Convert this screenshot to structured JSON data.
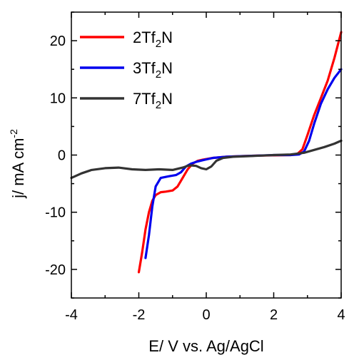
{
  "chart_data": {
    "type": "line",
    "xlabel": "E/ V vs. Ag/AgCl",
    "ylabel": "j/ mA cm-2",
    "ylabel_parts": {
      "text": "j/ mA cm",
      "sup": "-2"
    },
    "xlim": [
      -4,
      4
    ],
    "ylim": [
      -25,
      25
    ],
    "x_ticks": [
      -4,
      -2,
      0,
      2,
      4
    ],
    "y_ticks": [
      -20,
      -10,
      0,
      10,
      20
    ],
    "grid": false,
    "legend_position": "top-left",
    "series": [
      {
        "name": "2Tf2N",
        "label": {
          "pre": "2Tf",
          "sub": "2",
          "post": "N"
        },
        "color": "#ff0000",
        "points": [
          [
            -2.0,
            -20.5
          ],
          [
            -1.9,
            -17.0
          ],
          [
            -1.8,
            -13.0
          ],
          [
            -1.7,
            -10.0
          ],
          [
            -1.6,
            -8.0
          ],
          [
            -1.5,
            -7.0
          ],
          [
            -1.35,
            -6.5
          ],
          [
            -1.2,
            -6.4
          ],
          [
            -1.0,
            -6.2
          ],
          [
            -0.85,
            -5.5
          ],
          [
            -0.7,
            -4.0
          ],
          [
            -0.55,
            -2.5
          ],
          [
            -0.4,
            -1.5
          ],
          [
            -0.25,
            -1.0
          ],
          [
            -0.1,
            -0.8
          ],
          [
            0.2,
            -0.5
          ],
          [
            0.6,
            -0.3
          ],
          [
            1.0,
            -0.2
          ],
          [
            1.5,
            -0.1
          ],
          [
            2.0,
            -0.05
          ],
          [
            2.5,
            0.0
          ],
          [
            2.7,
            0.2
          ],
          [
            2.85,
            1.0
          ],
          [
            3.0,
            3.5
          ],
          [
            3.2,
            7.0
          ],
          [
            3.4,
            10.0
          ],
          [
            3.6,
            13.0
          ],
          [
            3.8,
            17.0
          ],
          [
            4.0,
            21.5
          ]
        ]
      },
      {
        "name": "3Tf2N",
        "label": {
          "pre": "3Tf",
          "sub": "2",
          "post": "N"
        },
        "color": "#0000ee",
        "points": [
          [
            -1.8,
            -18.0
          ],
          [
            -1.7,
            -14.0
          ],
          [
            -1.6,
            -9.0
          ],
          [
            -1.5,
            -5.5
          ],
          [
            -1.35,
            -4.0
          ],
          [
            -1.1,
            -3.7
          ],
          [
            -0.9,
            -3.5
          ],
          [
            -0.75,
            -3.0
          ],
          [
            -0.6,
            -2.0
          ],
          [
            -0.45,
            -1.5
          ],
          [
            -0.3,
            -1.2
          ],
          [
            -0.1,
            -0.9
          ],
          [
            0.2,
            -0.5
          ],
          [
            0.6,
            -0.3
          ],
          [
            1.0,
            -0.2
          ],
          [
            1.5,
            -0.1
          ],
          [
            2.0,
            0.0
          ],
          [
            2.5,
            0.0
          ],
          [
            2.75,
            0.1
          ],
          [
            2.9,
            0.6
          ],
          [
            3.05,
            2.5
          ],
          [
            3.2,
            5.5
          ],
          [
            3.4,
            9.0
          ],
          [
            3.6,
            11.5
          ],
          [
            3.8,
            13.5
          ],
          [
            4.0,
            15.0
          ]
        ]
      },
      {
        "name": "7Tf2N",
        "label": {
          "pre": "7Tf",
          "sub": "2",
          "post": "N"
        },
        "color": "#333333",
        "points": [
          [
            -4.0,
            -4.0
          ],
          [
            -3.7,
            -3.2
          ],
          [
            -3.4,
            -2.6
          ],
          [
            -3.0,
            -2.3
          ],
          [
            -2.6,
            -2.2
          ],
          [
            -2.2,
            -2.5
          ],
          [
            -1.8,
            -2.6
          ],
          [
            -1.4,
            -2.5
          ],
          [
            -1.0,
            -2.6
          ],
          [
            -0.7,
            -2.2
          ],
          [
            -0.5,
            -1.8
          ],
          [
            -0.3,
            -1.9
          ],
          [
            -0.15,
            -2.3
          ],
          [
            0.0,
            -2.5
          ],
          [
            0.15,
            -2.0
          ],
          [
            0.3,
            -1.0
          ],
          [
            0.5,
            -0.5
          ],
          [
            0.8,
            -0.3
          ],
          [
            1.2,
            -0.2
          ],
          [
            1.6,
            -0.1
          ],
          [
            2.0,
            0.0
          ],
          [
            2.5,
            0.1
          ],
          [
            2.9,
            0.4
          ],
          [
            3.2,
            0.9
          ],
          [
            3.5,
            1.4
          ],
          [
            3.8,
            2.0
          ],
          [
            4.0,
            2.5
          ]
        ]
      }
    ]
  }
}
